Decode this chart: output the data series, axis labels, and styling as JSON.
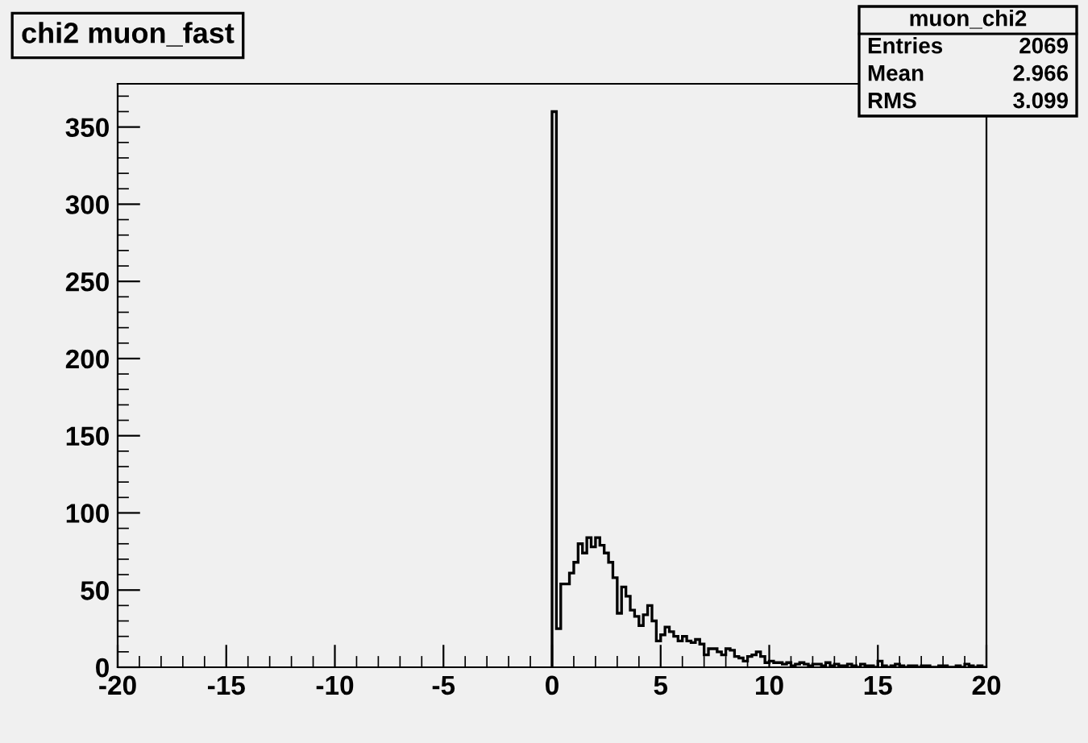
{
  "chart_data": {
    "type": "histogram",
    "title": "chi2 muon_fast",
    "bins": [
      0,
      0.2,
      0.4,
      0.6,
      0.8,
      1,
      1.2,
      1.4,
      1.6,
      1.8,
      2,
      2.2,
      2.4,
      2.6,
      2.8,
      3,
      3.2,
      3.4,
      3.6,
      3.8,
      4,
      4.2,
      4.4,
      4.6,
      4.8,
      5,
      5.2,
      5.4,
      5.6,
      5.8,
      6,
      6.2,
      6.4,
      6.6,
      6.8,
      7,
      7.2,
      7.4,
      7.6,
      7.8,
      8,
      8.2,
      8.4,
      8.6,
      8.8,
      9,
      9.2,
      9.4,
      9.6,
      9.8,
      10,
      10.2,
      10.4,
      10.6,
      10.8,
      11,
      11.2,
      11.4,
      11.6,
      11.8,
      12,
      12.2,
      12.4,
      12.6,
      12.8,
      13,
      13.2,
      13.4,
      13.6,
      13.8,
      14,
      14.2,
      14.4,
      14.6,
      14.8,
      15,
      15.2,
      15.4,
      15.6,
      15.8,
      16,
      16.2,
      16.4,
      16.6,
      16.8,
      17,
      17.2,
      17.4,
      17.6,
      17.8,
      18,
      18.2,
      18.4,
      18.6,
      18.8,
      19,
      19.2,
      19.4,
      19.6,
      19.8,
      20
    ],
    "values": [
      360,
      25,
      54,
      54,
      61,
      68,
      80,
      74,
      84,
      78,
      84,
      79,
      74,
      68,
      58,
      35,
      52,
      46,
      37,
      33,
      27,
      34,
      40,
      30,
      17,
      21,
      26,
      23,
      20,
      17,
      20,
      17,
      16,
      18,
      15,
      8,
      12,
      12,
      10,
      8,
      12,
      11,
      7,
      6,
      4,
      7,
      8,
      10,
      7,
      3,
      4,
      3,
      3,
      2,
      3,
      1,
      2,
      3,
      2,
      1,
      2,
      2,
      1,
      3,
      1,
      2,
      1,
      1,
      2,
      1,
      0,
      2,
      1,
      1,
      0,
      4,
      1,
      0,
      1,
      2,
      1,
      0,
      1,
      1,
      0,
      1,
      1,
      0,
      0,
      1,
      1,
      0,
      0,
      1,
      0,
      2,
      1,
      0,
      1,
      0
    ],
    "color": "#000000",
    "xlim": [
      -20,
      20
    ],
    "ylim": [
      0,
      378
    ],
    "xticks": [
      -20,
      -15,
      -10,
      -5,
      0,
      5,
      10,
      15,
      20
    ],
    "yticks": [
      0,
      50,
      100,
      150,
      200,
      250,
      300,
      350
    ],
    "grid": false,
    "annotations": [
      "muon_chi2",
      "Entries",
      "2069",
      "Mean",
      "2.966",
      "RMS",
      "3.099"
    ]
  }
}
